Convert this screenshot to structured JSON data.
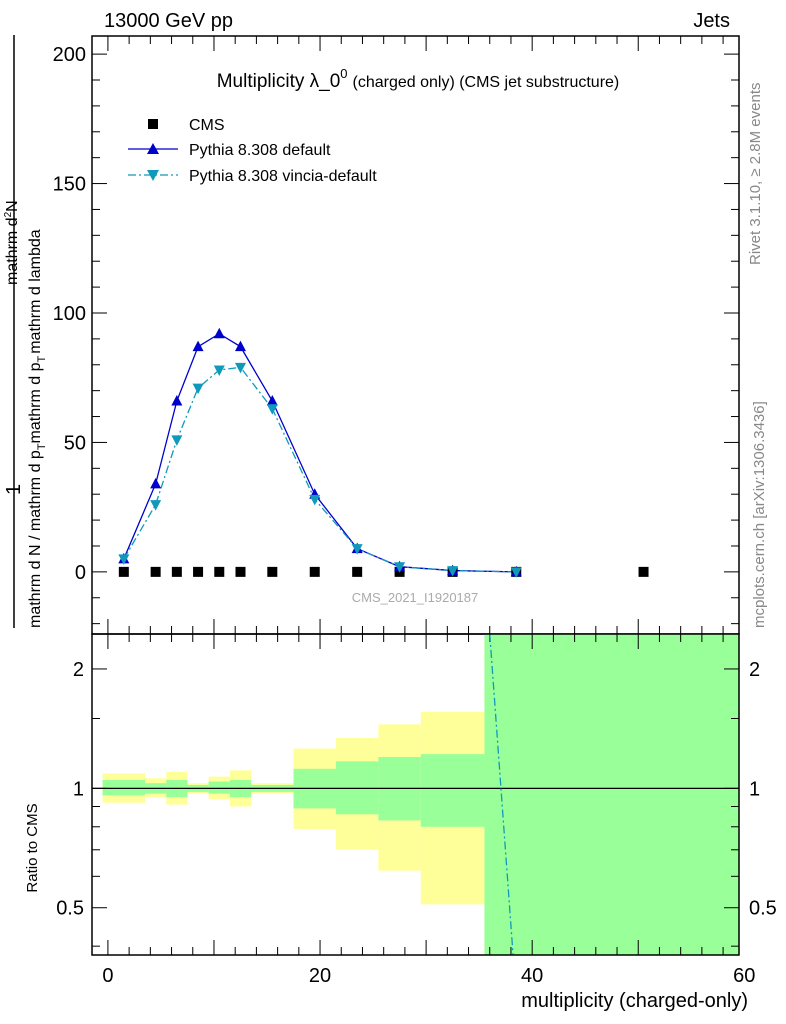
{
  "header": {
    "left_label": "13000 GeV pp",
    "right_label": "Jets"
  },
  "side_labels": {
    "rivet": "Rivet 3.1.10, ≥ 2.8M events",
    "mcplots": "mcplots.cern.ch [arXiv:1306.3436]"
  },
  "colors": {
    "cms": "#000000",
    "pythia_default": "#0000cc",
    "pythia_vincia": "#1199bb",
    "band_inner": "#99ff99",
    "band_outer": "#ffff99"
  },
  "chart_data": [
    {
      "type": "line",
      "title": "Multiplicity λ_0",
      "title_superscript": "0",
      "title_suffix": "(charged only) (CMS jet substructure)",
      "watermark": "CMS_2021_I1920187",
      "ylabel_parts": {
        "prefix": "1",
        "denominator": "mathrm d N / mathrm d p",
        "pt_sub": "T",
        "middle": "mathrm d p",
        "middle_sub": "T",
        "tail": "mathrm d lambda",
        "numerator": "mathrm d",
        "numerator_sup": "2",
        "numerator_tail": "N"
      },
      "xlim": [
        -1.5,
        59.5
      ],
      "ylim": [
        -24,
        207
      ],
      "yticks": [
        0,
        50,
        100,
        150,
        200
      ],
      "legend_position": "top-left",
      "series": [
        {
          "name": "CMS",
          "marker": "square",
          "x": [
            1.5,
            4.5,
            6.5,
            8.5,
            10.5,
            12.5,
            15.5,
            19.5,
            23.5,
            27.5,
            32.5,
            38.5,
            50.5
          ],
          "y": [
            0,
            0,
            0,
            0,
            0,
            0,
            0,
            0,
            0,
            0,
            0,
            0,
            0
          ]
        },
        {
          "name": "Pythia 8.308 default",
          "marker": "triangle-up",
          "line": "solid",
          "x": [
            1.5,
            4.5,
            6.5,
            8.5,
            10.5,
            12.5,
            15.5,
            19.5,
            23.5,
            27.5,
            32.5,
            38.5
          ],
          "y": [
            5,
            34,
            66,
            87,
            92,
            87,
            66,
            30,
            9,
            2,
            0.5,
            0
          ]
        },
        {
          "name": "Pythia 8.308 vincia-default",
          "marker": "triangle-down",
          "line": "dashdot",
          "x": [
            1.5,
            4.5,
            6.5,
            8.5,
            10.5,
            12.5,
            15.5,
            19.5,
            23.5,
            27.5,
            32.5,
            38.5
          ],
          "y": [
            5,
            26,
            51,
            71,
            78,
            79,
            63,
            28,
            9,
            2,
            0.5,
            0
          ]
        }
      ]
    },
    {
      "type": "area",
      "ylabel": "Ratio to CMS",
      "xlabel": "multiplicity (charged-only)",
      "xticks": [
        0,
        20,
        40,
        60
      ],
      "yticks": [
        0.5,
        1,
        2
      ],
      "y_scale": "log",
      "xlim": [
        -1.5,
        59.5
      ],
      "ylim": [
        0.38,
        2.45
      ],
      "bands": [
        {
          "x0": -0.5,
          "x1": 3.5,
          "inner": [
            0.96,
            1.05
          ],
          "outer": [
            0.92,
            1.09
          ]
        },
        {
          "x0": 3.5,
          "x1": 5.5,
          "inner": [
            0.97,
            1.03
          ],
          "outer": [
            0.95,
            1.06
          ]
        },
        {
          "x0": 5.5,
          "x1": 7.5,
          "inner": [
            0.95,
            1.05
          ],
          "outer": [
            0.91,
            1.1
          ]
        },
        {
          "x0": 7.5,
          "x1": 9.5,
          "inner": [
            0.98,
            1.02
          ],
          "outer": [
            0.97,
            1.03
          ]
        },
        {
          "x0": 9.5,
          "x1": 11.5,
          "inner": [
            0.97,
            1.04
          ],
          "outer": [
            0.94,
            1.07
          ]
        },
        {
          "x0": 11.5,
          "x1": 13.5,
          "inner": [
            0.95,
            1.05
          ],
          "outer": [
            0.9,
            1.11
          ]
        },
        {
          "x0": 13.5,
          "x1": 17.5,
          "inner": [
            0.98,
            1.02
          ],
          "outer": [
            0.97,
            1.03
          ]
        },
        {
          "x0": 17.5,
          "x1": 21.5,
          "inner": [
            0.89,
            1.12
          ],
          "outer": [
            0.79,
            1.26
          ]
        },
        {
          "x0": 21.5,
          "x1": 25.5,
          "inner": [
            0.86,
            1.17
          ],
          "outer": [
            0.7,
            1.34
          ]
        },
        {
          "x0": 25.5,
          "x1": 29.5,
          "inner": [
            0.83,
            1.2
          ],
          "outer": [
            0.62,
            1.45
          ]
        },
        {
          "x0": 29.5,
          "x1": 35.5,
          "inner": [
            0.8,
            1.22
          ],
          "outer": [
            0.51,
            1.56
          ]
        },
        {
          "x0": 35.5,
          "x1": 59.5,
          "inner": [
            0.38,
            2.45
          ],
          "outer": [
            0.38,
            2.45
          ]
        }
      ],
      "lines": [
        {
          "name": "Pythia 8.308 vincia-default",
          "style": "dashdot",
          "x": [
            36.0,
            38.2
          ],
          "y": [
            2.45,
            0.38
          ]
        }
      ]
    }
  ]
}
